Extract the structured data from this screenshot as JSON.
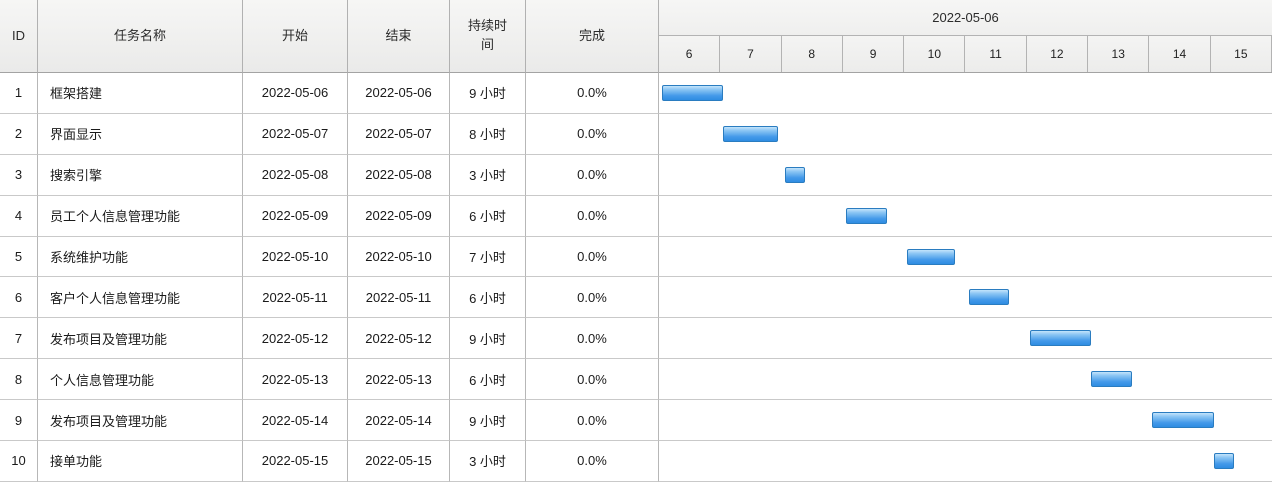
{
  "table": {
    "columns": [
      {
        "key": "id",
        "label": "ID"
      },
      {
        "key": "name",
        "label": "任务名称"
      },
      {
        "key": "start",
        "label": "开始"
      },
      {
        "key": "end",
        "label": "结束"
      },
      {
        "key": "duration",
        "label": "持续时间"
      },
      {
        "key": "complete",
        "label": "完成"
      }
    ],
    "rows": [
      {
        "id": "1",
        "name": "框架搭建",
        "start": "2022-05-06",
        "end": "2022-05-06",
        "duration": "9 小时",
        "complete": "0.0%"
      },
      {
        "id": "2",
        "name": "界面显示",
        "start": "2022-05-07",
        "end": "2022-05-07",
        "duration": "8 小时",
        "complete": "0.0%"
      },
      {
        "id": "3",
        "name": "搜索引擎",
        "start": "2022-05-08",
        "end": "2022-05-08",
        "duration": "3 小时",
        "complete": "0.0%"
      },
      {
        "id": "4",
        "name": "员工个人信息管理功能",
        "start": "2022-05-09",
        "end": "2022-05-09",
        "duration": "6 小时",
        "complete": "0.0%"
      },
      {
        "id": "5",
        "name": "系统维护功能",
        "start": "2022-05-10",
        "end": "2022-05-10",
        "duration": "7 小时",
        "complete": "0.0%"
      },
      {
        "id": "6",
        "name": "客户个人信息管理功能",
        "start": "2022-05-11",
        "end": "2022-05-11",
        "duration": "6 小时",
        "complete": "0.0%"
      },
      {
        "id": "7",
        "name": "发布项目及管理功能",
        "start": "2022-05-12",
        "end": "2022-05-12",
        "duration": "9 小时",
        "complete": "0.0%"
      },
      {
        "id": "8",
        "name": "个人信息管理功能",
        "start": "2022-05-13",
        "end": "2022-05-13",
        "duration": "6 小时",
        "complete": "0.0%"
      },
      {
        "id": "9",
        "name": "发布项目及管理功能",
        "start": "2022-05-14",
        "end": "2022-05-14",
        "duration": "9 小时",
        "complete": "0.0%"
      },
      {
        "id": "10",
        "name": "接单功能",
        "start": "2022-05-15",
        "end": "2022-05-15",
        "duration": "3 小时",
        "complete": "0.0%"
      }
    ]
  },
  "timeline": {
    "month_label": "2022-05-06",
    "days": [
      "6",
      "7",
      "8",
      "9",
      "10",
      "11",
      "12",
      "13",
      "14",
      "15"
    ]
  },
  "chart_data": {
    "type": "bar",
    "variant": "gantt",
    "title": "2022-05-06",
    "x_axis_days": [
      6,
      7,
      8,
      9,
      10,
      11,
      12,
      13,
      14,
      15
    ],
    "hours_per_day_unit": 9,
    "tasks": [
      {
        "id": 1,
        "name": "框架搭建",
        "start": "2022-05-06",
        "end": "2022-05-06",
        "day": 6,
        "duration_hours": 9,
        "complete_pct": 0.0
      },
      {
        "id": 2,
        "name": "界面显示",
        "start": "2022-05-07",
        "end": "2022-05-07",
        "day": 7,
        "duration_hours": 8,
        "complete_pct": 0.0
      },
      {
        "id": 3,
        "name": "搜索引擎",
        "start": "2022-05-08",
        "end": "2022-05-08",
        "day": 8,
        "duration_hours": 3,
        "complete_pct": 0.0
      },
      {
        "id": 4,
        "name": "员工个人信息管理功能",
        "start": "2022-05-09",
        "end": "2022-05-09",
        "day": 9,
        "duration_hours": 6,
        "complete_pct": 0.0
      },
      {
        "id": 5,
        "name": "系统维护功能",
        "start": "2022-05-10",
        "end": "2022-05-10",
        "day": 10,
        "duration_hours": 7,
        "complete_pct": 0.0
      },
      {
        "id": 6,
        "name": "客户个人信息管理功能",
        "start": "2022-05-11",
        "end": "2022-05-11",
        "day": 11,
        "duration_hours": 6,
        "complete_pct": 0.0
      },
      {
        "id": 7,
        "name": "发布项目及管理功能",
        "start": "2022-05-12",
        "end": "2022-05-12",
        "day": 12,
        "duration_hours": 9,
        "complete_pct": 0.0
      },
      {
        "id": 8,
        "name": "个人信息管理功能",
        "start": "2022-05-13",
        "end": "2022-05-13",
        "day": 13,
        "duration_hours": 6,
        "complete_pct": 0.0
      },
      {
        "id": 9,
        "name": "发布项目及管理功能",
        "start": "2022-05-14",
        "end": "2022-05-14",
        "day": 14,
        "duration_hours": 9,
        "complete_pct": 0.0
      },
      {
        "id": 10,
        "name": "接单功能",
        "start": "2022-05-15",
        "end": "2022-05-15",
        "day": 15,
        "duration_hours": 3,
        "complete_pct": 0.0
      }
    ]
  },
  "colors": {
    "bar_border": "#2a7cc0",
    "bar_gradient_top": "#c3e4fb",
    "bar_gradient_bottom": "#2f8ce2",
    "header_bg": "#f1f1f0",
    "grid_line": "#c9c9c9",
    "column_border": "#b3b3b3"
  }
}
